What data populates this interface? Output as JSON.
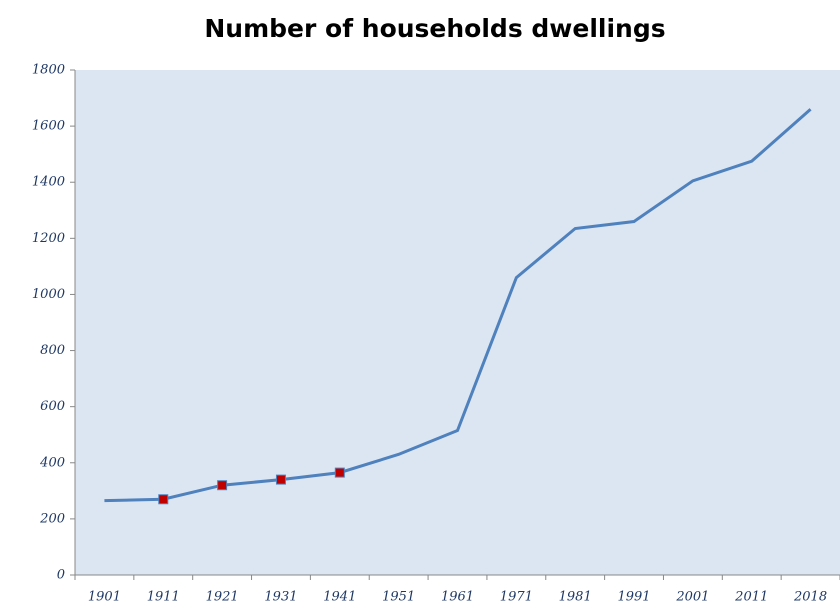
{
  "chart_data": {
    "type": "line",
    "title": "Number of households dwellings",
    "categories": [
      "1901",
      "1911",
      "1921",
      "1931",
      "1941",
      "1951",
      "1961",
      "1971",
      "1981",
      "1991",
      "2001",
      "2011",
      "2018"
    ],
    "series": [
      {
        "name": "Number of households dwellings",
        "color": "#4f81bd",
        "values": [
          265,
          270,
          320,
          340,
          365,
          430,
          515,
          1060,
          1235,
          1260,
          1405,
          1475,
          1660
        ]
      }
    ],
    "marked": [
      "1911",
      "1921",
      "1931",
      "1941"
    ],
    "marker_color": "#c00000",
    "plot_background": "#dce6f2",
    "ylim": [
      0,
      1800
    ],
    "yticks": [
      0,
      200,
      400,
      600,
      800,
      1000,
      1200,
      1400,
      1600,
      1800
    ]
  }
}
